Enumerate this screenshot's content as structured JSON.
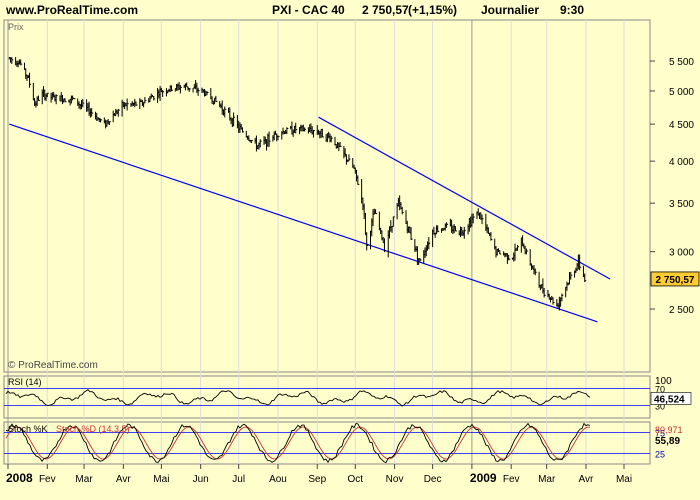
{
  "header": {
    "site": "www.ProRealTime.com",
    "instrument": "PXI - CAC 40",
    "last": "2 750,57",
    "change": "(+1,15%)",
    "period": "Journalier",
    "time": "9:30"
  },
  "colors": {
    "background": "#ffffcc",
    "trendline": "#0000ff",
    "price_bar": "#000000",
    "stoch_signal": "#cc3333",
    "current_tag": "#ffcc33"
  },
  "chart_data": [
    {
      "type": "ohlc",
      "panel": "Prix",
      "title": "Prix",
      "watermark": "© ProRealTime.com",
      "y_scale": "log",
      "ylim": [
        2300,
        5600
      ],
      "y_ticks": [
        2500,
        3000,
        3500,
        4000,
        4500,
        5000,
        5500
      ],
      "y_tick_labels": [
        "2 500",
        "3 000",
        "3 500",
        "4 000",
        "4 500",
        "5 000",
        "5 500"
      ],
      "current_value_label": "2 750,57",
      "current_value": 2750.57,
      "x_labels": [
        "2008",
        "Fev",
        "Mar",
        "Avr",
        "Mai",
        "Jun",
        "Jul",
        "Aou",
        "Sep",
        "Oct",
        "Nov",
        "Dec",
        "2009",
        "Fev",
        "Mar",
        "Avr",
        "Mai"
      ],
      "close_path": [
        [
          "2008-01-02",
          5550
        ],
        [
          "2008-01-10",
          5480
        ],
        [
          "2008-01-17",
          5200
        ],
        [
          "2008-01-22",
          4800
        ],
        [
          "2008-01-28",
          4950
        ],
        [
          "2008-02-08",
          4880
        ],
        [
          "2008-02-20",
          4880
        ],
        [
          "2008-03-05",
          4700
        ],
        [
          "2008-03-17",
          4500
        ],
        [
          "2008-04-01",
          4780
        ],
        [
          "2008-04-15",
          4800
        ],
        [
          "2008-05-01",
          5000
        ],
        [
          "2008-05-19",
          5080
        ],
        [
          "2008-06-02",
          5000
        ],
        [
          "2008-06-15",
          4800
        ],
        [
          "2008-07-01",
          4450
        ],
        [
          "2008-07-15",
          4200
        ],
        [
          "2008-07-22",
          4250
        ],
        [
          "2008-08-01",
          4380
        ],
        [
          "2008-08-15",
          4430
        ],
        [
          "2008-09-01",
          4400
        ],
        [
          "2008-09-12",
          4300
        ],
        [
          "2008-09-19",
          4150
        ],
        [
          "2008-09-30",
          3900
        ],
        [
          "2008-10-07",
          3500
        ],
        [
          "2008-10-10",
          3050
        ],
        [
          "2008-10-16",
          3400
        ],
        [
          "2008-10-24",
          3050
        ],
        [
          "2008-11-04",
          3500
        ],
        [
          "2008-11-11",
          3250
        ],
        [
          "2008-11-21",
          2900
        ],
        [
          "2008-12-01",
          3200
        ],
        [
          "2008-12-12",
          3250
        ],
        [
          "2008-12-24",
          3200
        ],
        [
          "2009-01-06",
          3400
        ],
        [
          "2009-01-20",
          3000
        ],
        [
          "2009-02-02",
          2950
        ],
        [
          "2009-02-09",
          3100
        ],
        [
          "2009-02-23",
          2700
        ],
        [
          "2009-03-09",
          2530
        ],
        [
          "2009-03-19",
          2750
        ],
        [
          "2009-03-26",
          2900
        ],
        [
          "2009-03-31",
          2750
        ]
      ],
      "trendlines": [
        {
          "name": "upper",
          "points": [
            [
              "2008-09-02",
              4600
            ],
            [
              "2009-04-20",
              2750
            ]
          ]
        },
        {
          "name": "lower",
          "points": [
            [
              "2008-01-02",
              4500
            ],
            [
              "2009-04-10",
              2400
            ]
          ]
        }
      ]
    },
    {
      "type": "line",
      "panel": "RSI",
      "title": "RSI (14)",
      "ylim": [
        0,
        100
      ],
      "levels": [
        30,
        70
      ],
      "level_labels": [
        "30",
        "70"
      ],
      "top_label": "100",
      "current_value_label": "46,524",
      "current_value": 46.524
    },
    {
      "type": "line",
      "panel": "Stochastic",
      "title": "Stoch %K",
      "series_names": [
        "Stoch %K",
        "Stoch %D (14,3,5)"
      ],
      "ylim": [
        0,
        100
      ],
      "levels": [
        25,
        75
      ],
      "level_labels": [
        "25",
        "75"
      ],
      "value_labels": [
        "80,971",
        "55,89"
      ]
    }
  ]
}
